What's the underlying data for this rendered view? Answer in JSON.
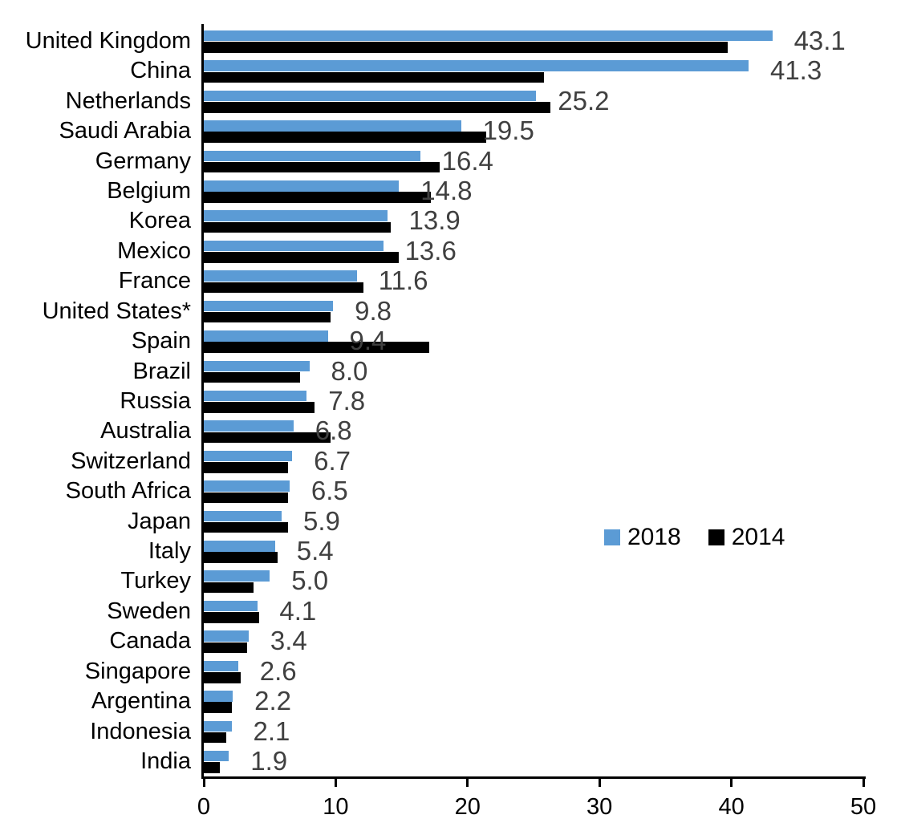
{
  "chart_data": {
    "type": "bar",
    "orientation": "horizontal",
    "title": "",
    "xlabel": "",
    "ylabel": "",
    "xlim": [
      0,
      50
    ],
    "x_ticks": [
      0,
      10,
      20,
      30,
      40,
      50
    ],
    "grid": false,
    "categories": [
      "United Kingdom",
      "China",
      "Netherlands",
      "Saudi Arabia",
      "Germany",
      "Belgium",
      "Korea",
      "Mexico",
      "France",
      "United States*",
      "Spain",
      "Brazil",
      "Russia",
      "Australia",
      "Switzerland",
      "South Africa",
      "Japan",
      "Italy",
      "Turkey",
      "Sweden",
      "Canada",
      "Singapore",
      "Argentina",
      "Indonesia",
      "India"
    ],
    "series": [
      {
        "name": "2018",
        "color": "#5B9BD5",
        "values": [
          43.1,
          41.3,
          25.2,
          19.5,
          16.4,
          14.8,
          13.9,
          13.6,
          11.6,
          9.8,
          9.4,
          8.0,
          7.8,
          6.8,
          6.7,
          6.5,
          5.9,
          5.4,
          5.0,
          4.1,
          3.4,
          2.6,
          2.2,
          2.1,
          1.9
        ]
      },
      {
        "name": "2014",
        "color": "#000000",
        "values": [
          39.7,
          25.8,
          26.3,
          21.4,
          17.9,
          17.2,
          14.2,
          14.8,
          12.1,
          9.6,
          17.1,
          7.3,
          8.4,
          9.6,
          6.4,
          6.4,
          6.4,
          5.6,
          3.8,
          4.2,
          3.3,
          2.8,
          2.1,
          1.7,
          1.2
        ]
      }
    ],
    "value_labels": [
      "43.1",
      "41.3",
      "25.2",
      "19.5",
      "16.4",
      "14.8",
      "13.9",
      "13.6",
      "11.6",
      "9.8",
      "9.4",
      "8.0",
      "7.8",
      "6.8",
      "6.7",
      "6.5",
      "5.9",
      "5.4",
      "5.0",
      "4.1",
      "3.4",
      "2.6",
      "2.2",
      "2.1",
      "1.9"
    ],
    "value_label_color": "#404040",
    "axis_color": "#000000",
    "legend": {
      "position": "center-right",
      "entries": [
        {
          "label": "2018",
          "color": "#5B9BD5"
        },
        {
          "label": "2014",
          "color": "#000000"
        }
      ]
    }
  }
}
